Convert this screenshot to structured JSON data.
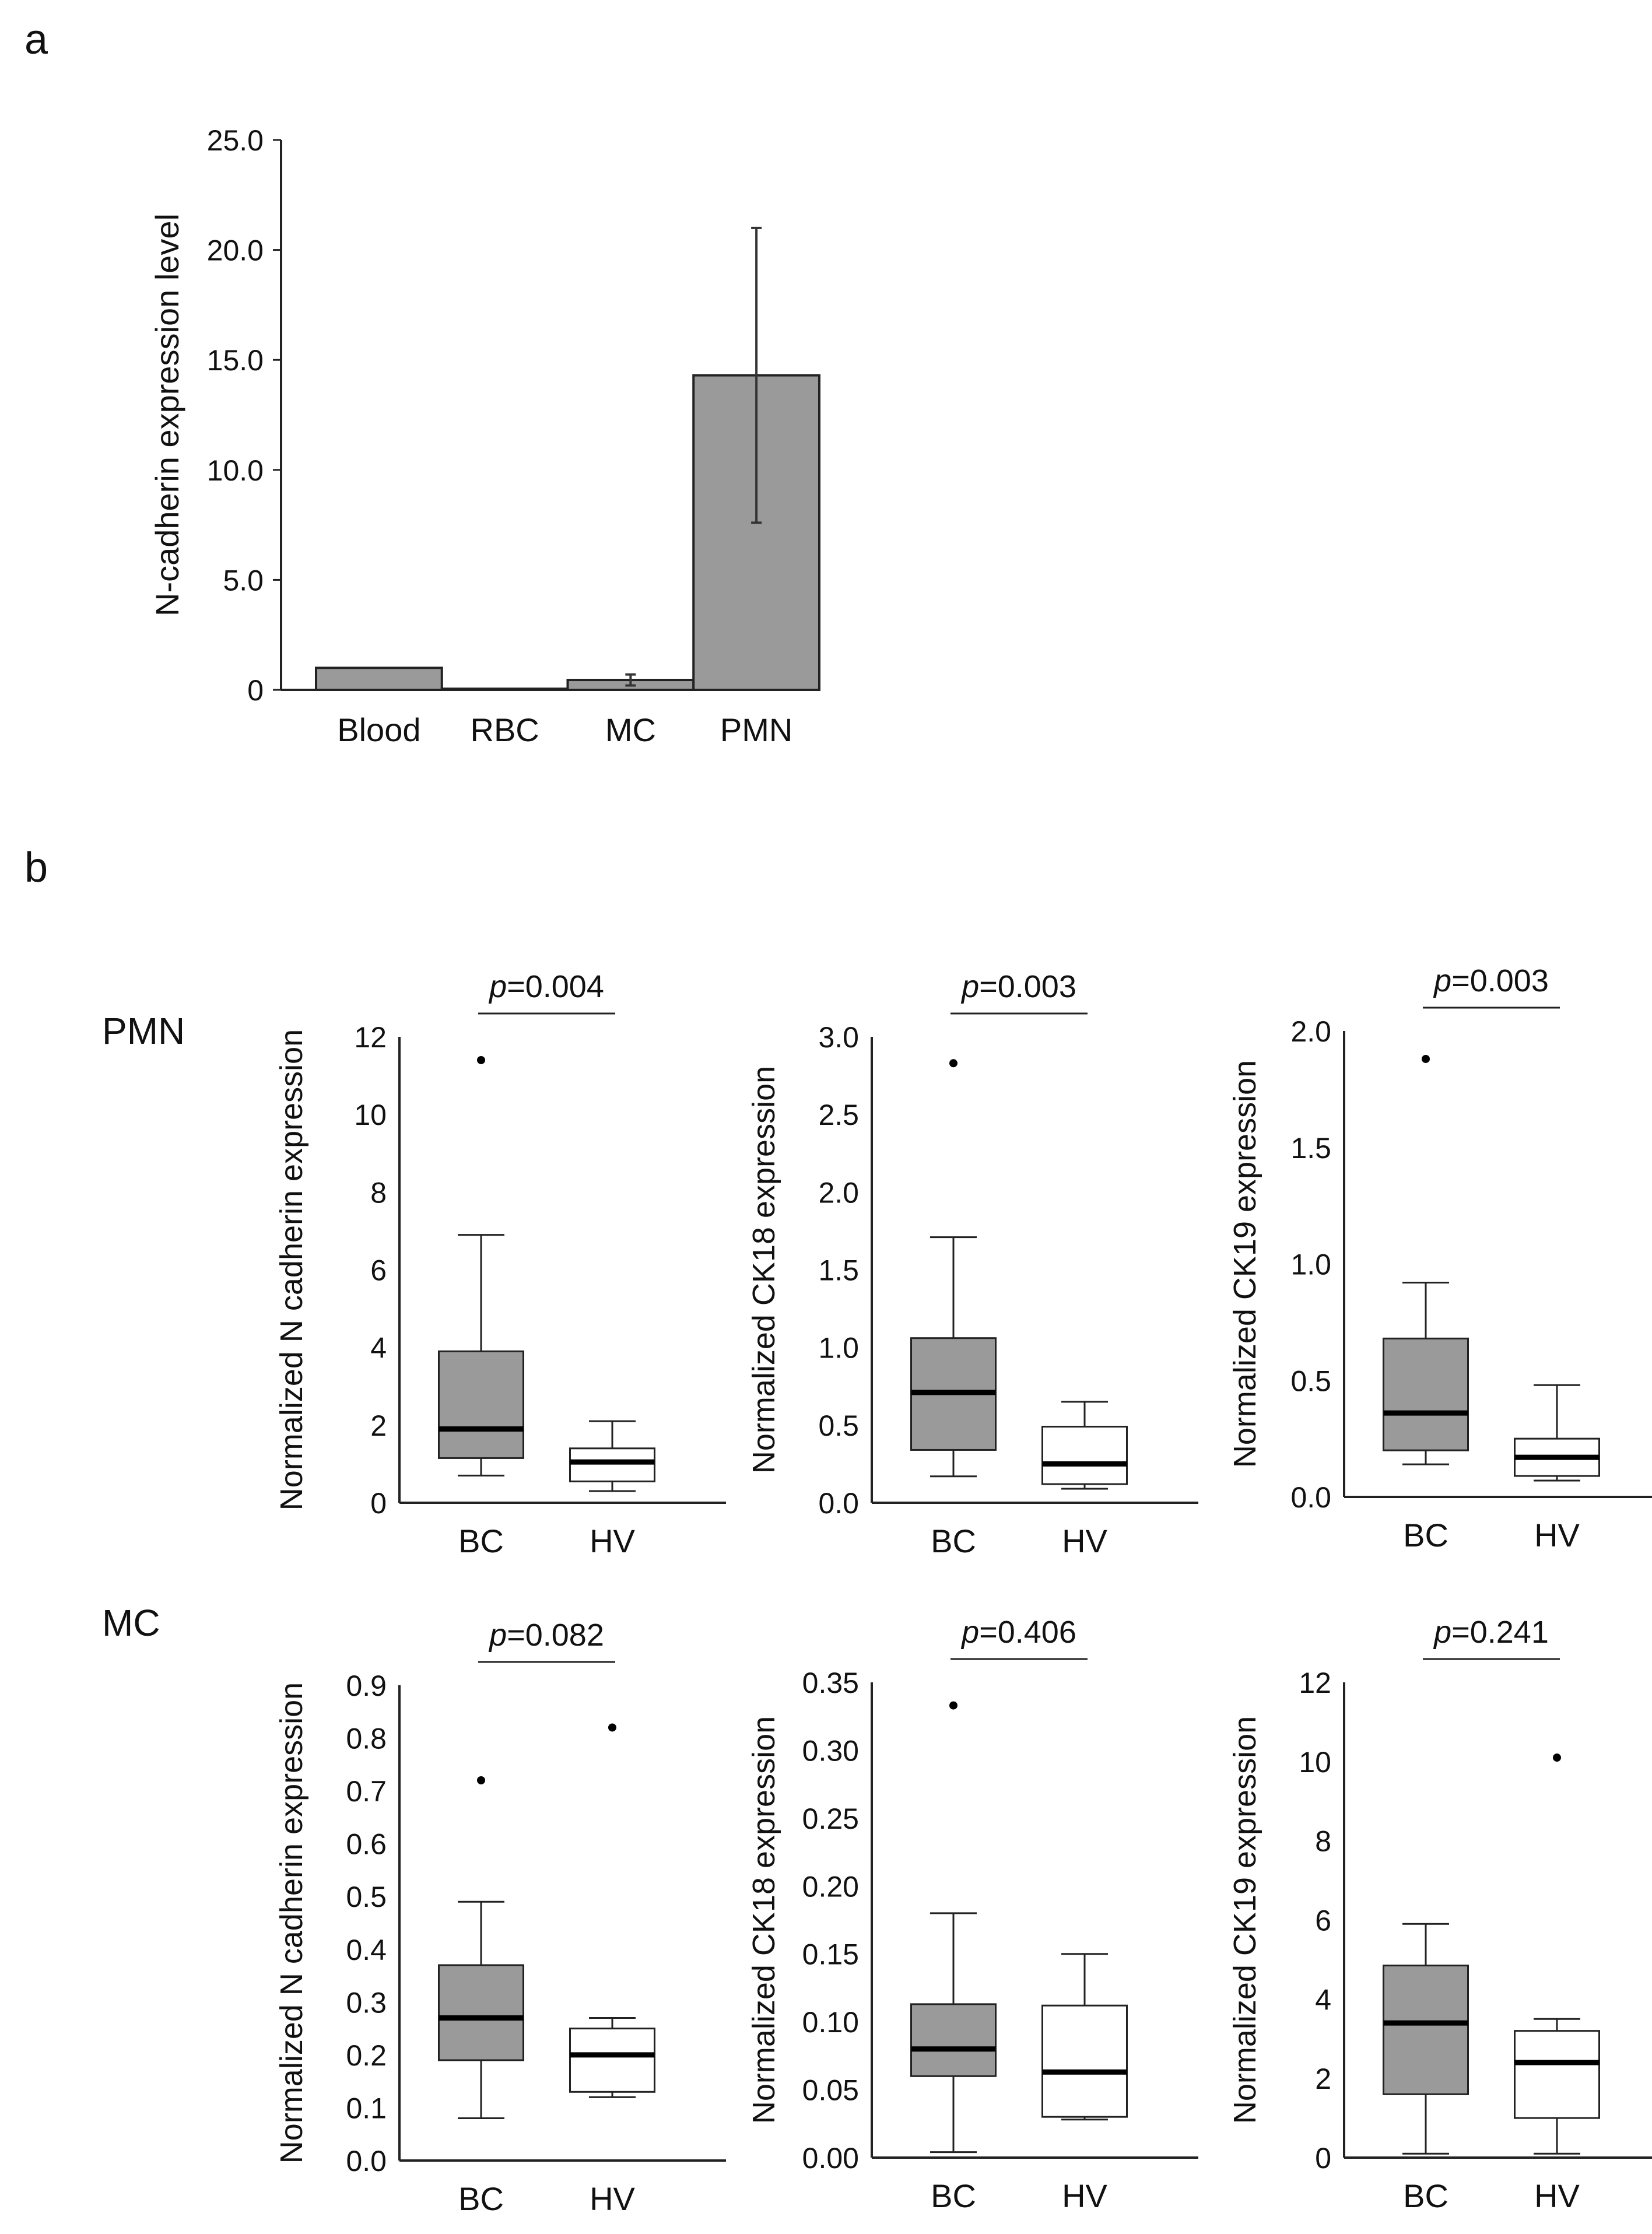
{
  "panel_a": {
    "label": "a",
    "chart_data": {
      "type": "bar",
      "categories": [
        "Blood",
        "RBC",
        "MC",
        "PMN"
      ],
      "values": [
        1.0,
        0.05,
        0.45,
        14.3
      ],
      "error": [
        0,
        0,
        0.25,
        6.7
      ],
      "ylabel": "N-cadherin expression level",
      "ylim": [
        0,
        25
      ],
      "yticks": [
        0,
        5,
        10,
        15,
        20,
        25
      ],
      "ytick_labels": [
        "0",
        "5.0",
        "10.0",
        "15.0",
        "20.0",
        "25.0"
      ],
      "bar_color": "#9a9a9a"
    }
  },
  "panel_b": {
    "label": "b",
    "row_labels": [
      "PMN",
      "MC"
    ],
    "chart_data": [
      {
        "type": "box",
        "row": "PMN",
        "ylabel": "Normalized N cadherin expression",
        "pvalue_prefix": "p",
        "pvalue_text": "=0.004",
        "ylim": [
          0,
          12
        ],
        "yticks": [
          0,
          2,
          4,
          6,
          8,
          10,
          12
        ],
        "ytick_labels": [
          "0",
          "2",
          "4",
          "6",
          "8",
          "10",
          "12"
        ],
        "groups": [
          {
            "name": "BC",
            "whisker_low": 0.7,
            "q1": 1.15,
            "median": 1.9,
            "q3": 3.9,
            "whisker_high": 6.9,
            "outliers": [
              11.4
            ],
            "fill": "#9a9a9a"
          },
          {
            "name": "HV",
            "whisker_low": 0.3,
            "q1": 0.55,
            "median": 1.05,
            "q3": 1.4,
            "whisker_high": 2.1,
            "outliers": [],
            "fill": "#ffffff"
          }
        ]
      },
      {
        "type": "box",
        "row": "PMN",
        "ylabel": "Normalized CK18 expression",
        "pvalue_prefix": "p",
        "pvalue_text": "=0.003",
        "ylim": [
          0,
          3.0
        ],
        "yticks": [
          0,
          0.5,
          1.0,
          1.5,
          2.0,
          2.5,
          3.0
        ],
        "ytick_labels": [
          "0.0",
          "0.5",
          "1.0",
          "1.5",
          "2.0",
          "2.5",
          "3.0"
        ],
        "groups": [
          {
            "name": "BC",
            "whisker_low": 0.17,
            "q1": 0.34,
            "median": 0.71,
            "q3": 1.06,
            "whisker_high": 1.71,
            "outliers": [
              2.83
            ],
            "fill": "#9a9a9a"
          },
          {
            "name": "HV",
            "whisker_low": 0.09,
            "q1": 0.12,
            "median": 0.25,
            "q3": 0.49,
            "whisker_high": 0.65,
            "outliers": [],
            "fill": "#ffffff"
          }
        ]
      },
      {
        "type": "box",
        "row": "PMN",
        "ylabel": "Normalized CK19 expression",
        "pvalue_prefix": "p",
        "pvalue_text": "=0.003",
        "ylim": [
          0,
          2.0
        ],
        "yticks": [
          0,
          0.5,
          1.0,
          1.5,
          2.0
        ],
        "ytick_labels": [
          "0.0",
          "0.5",
          "1.0",
          "1.5",
          "2.0"
        ],
        "groups": [
          {
            "name": "BC",
            "whisker_low": 0.14,
            "q1": 0.2,
            "median": 0.36,
            "q3": 0.68,
            "whisker_high": 0.92,
            "outliers": [
              1.88
            ],
            "fill": "#9a9a9a"
          },
          {
            "name": "HV",
            "whisker_low": 0.07,
            "q1": 0.09,
            "median": 0.17,
            "q3": 0.25,
            "whisker_high": 0.48,
            "outliers": [],
            "fill": "#ffffff"
          }
        ]
      },
      {
        "type": "box",
        "row": "MC",
        "ylabel": "Normalized N cadherin expression",
        "pvalue_prefix": "p",
        "pvalue_text": "=0.082",
        "ylim": [
          0,
          0.9
        ],
        "yticks": [
          0,
          0.1,
          0.2,
          0.3,
          0.4,
          0.5,
          0.6,
          0.7,
          0.8,
          0.9
        ],
        "ytick_labels": [
          "0.0",
          "0.1",
          "0.2",
          "0.3",
          "0.4",
          "0.5",
          "0.6",
          "0.7",
          "0.8",
          "0.9"
        ],
        "groups": [
          {
            "name": "BC",
            "whisker_low": 0.08,
            "q1": 0.19,
            "median": 0.27,
            "q3": 0.37,
            "whisker_high": 0.49,
            "outliers": [
              0.72
            ],
            "fill": "#9a9a9a"
          },
          {
            "name": "HV",
            "whisker_low": 0.12,
            "q1": 0.13,
            "median": 0.2,
            "q3": 0.25,
            "whisker_high": 0.27,
            "outliers": [
              0.82
            ],
            "fill": "#ffffff"
          }
        ]
      },
      {
        "type": "box",
        "row": "MC",
        "ylabel": "Normalized CK18 expression",
        "pvalue_prefix": "p",
        "pvalue_text": "=0.406",
        "ylim": [
          0,
          0.35
        ],
        "yticks": [
          0,
          0.05,
          0.1,
          0.15,
          0.2,
          0.25,
          0.3,
          0.35
        ],
        "ytick_labels": [
          "0.00",
          "0.05",
          "0.10",
          "0.15",
          "0.20",
          "0.25",
          "0.30",
          "0.35"
        ],
        "groups": [
          {
            "name": "BC",
            "whisker_low": 0.004,
            "q1": 0.06,
            "median": 0.08,
            "q3": 0.113,
            "whisker_high": 0.18,
            "outliers": [
              0.333
            ],
            "fill": "#9a9a9a"
          },
          {
            "name": "HV",
            "whisker_low": 0.028,
            "q1": 0.03,
            "median": 0.063,
            "q3": 0.112,
            "whisker_high": 0.15,
            "outliers": [],
            "fill": "#ffffff"
          }
        ]
      },
      {
        "type": "box",
        "row": "MC",
        "ylabel": "Normalized CK19 expression",
        "pvalue_prefix": "p",
        "pvalue_text": "=0.241",
        "ylim": [
          0,
          12
        ],
        "yticks": [
          0,
          2,
          4,
          6,
          8,
          10,
          12
        ],
        "ytick_labels": [
          "0",
          "2",
          "4",
          "6",
          "8",
          "10",
          "12"
        ],
        "groups": [
          {
            "name": "BC",
            "whisker_low": 0.1,
            "q1": 1.6,
            "median": 3.4,
            "q3": 4.85,
            "whisker_high": 5.9,
            "outliers": [],
            "fill": "#9a9a9a"
          },
          {
            "name": "HV",
            "whisker_low": 0.1,
            "q1": 1.0,
            "median": 2.4,
            "q3": 3.2,
            "whisker_high": 3.5,
            "outliers": [
              10.1
            ],
            "fill": "#ffffff"
          }
        ]
      }
    ]
  }
}
